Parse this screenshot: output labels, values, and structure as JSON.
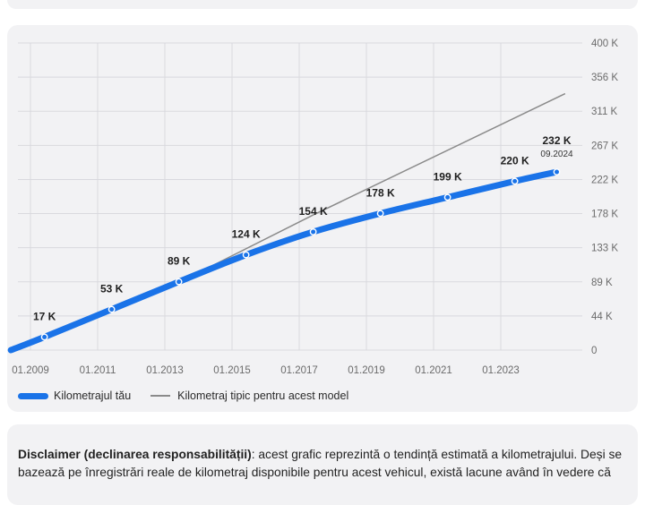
{
  "colors": {
    "accent": "#1a73e8",
    "typical": "#8a8a8a",
    "grid": "#d9d9de",
    "axis_text": "#6b6b6b",
    "card_bg": "#f2f2f4"
  },
  "legend": {
    "series_label": "Kilometrajul tău",
    "typical_label": "Kilometraj tipic pentru acest model"
  },
  "disclaimer": {
    "title": "Disclaimer (declinarea responsabilității)",
    "text": ": acest grafic reprezintă o tendință estimată a kilometrajului. Deși se bazează pe înregistrări reale de kilometraj disponibile pentru acest vehicul, există lacune având în vedere că"
  },
  "chart_data": {
    "type": "line",
    "title": "",
    "xlabel": "",
    "ylabel": "",
    "x_ticks": [
      "01.2009",
      "01.2011",
      "01.2013",
      "01.2015",
      "01.2017",
      "01.2019",
      "01.2021",
      "01.2023"
    ],
    "y_ticks": [
      "0",
      "44 K",
      "89 K",
      "133 K",
      "178 K",
      "222 K",
      "267 K",
      "311 K",
      "356 K",
      "400 K"
    ],
    "ylim": [
      0,
      400
    ],
    "grid": true,
    "series": [
      {
        "name": "Kilometrajul tău",
        "x": [
          "2008-06",
          "2009-06",
          "2011-06",
          "2013-06",
          "2015-06",
          "2017-06",
          "2019-06",
          "2021-06",
          "2023-06",
          "2024-09"
        ],
        "values": [
          0,
          17,
          53,
          89,
          124,
          154,
          178,
          199,
          220,
          232
        ],
        "labels": [
          "",
          "17 K",
          "53 K",
          "89 K",
          "124 K",
          "154 K",
          "178 K",
          "199 K",
          "220 K",
          "232 K"
        ],
        "last_point_date": "09.2024"
      },
      {
        "name": "Kilometraj tipic pentru acest model",
        "x": [
          "2008-06",
          "2013-06",
          "2017-06",
          "2024-12"
        ],
        "values": [
          0,
          88,
          176,
          334
        ]
      }
    ]
  }
}
